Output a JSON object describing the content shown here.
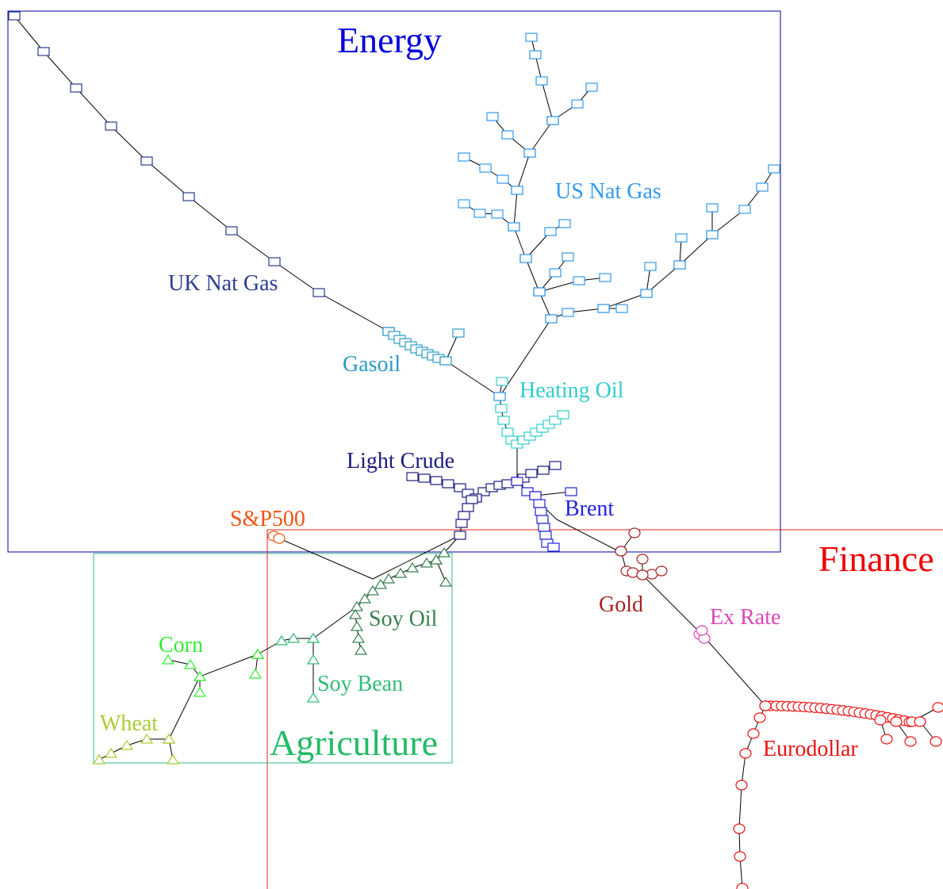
{
  "groups": [
    {
      "label": "Energy"
    },
    {
      "label": "Finance"
    },
    {
      "label": "Agriculture"
    }
  ],
  "clusters": [
    {
      "label": "UK Nat Gas"
    },
    {
      "label": "US Nat Gas"
    },
    {
      "label": "Gasoil"
    },
    {
      "label": "Heating Oil"
    },
    {
      "label": "Light Crude"
    },
    {
      "label": "Brent"
    },
    {
      "label": "S&P500"
    },
    {
      "label": "Gold"
    },
    {
      "label": "Ex Rate"
    },
    {
      "label": "Eurodollar"
    },
    {
      "label": "Soy Oil"
    },
    {
      "label": "Corn"
    },
    {
      "label": "Soy Bean"
    },
    {
      "label": "Wheat"
    }
  ]
}
